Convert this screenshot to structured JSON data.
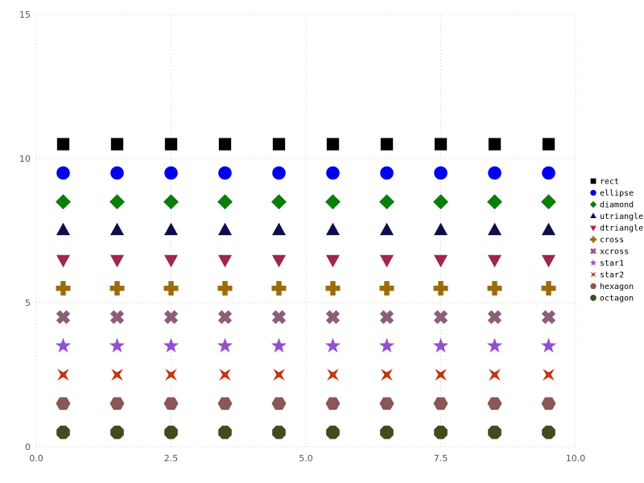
{
  "chart_data": {
    "type": "scatter",
    "title": "",
    "xlabel": "",
    "ylabel": "",
    "xlim": [
      0,
      10
    ],
    "ylim": [
      0,
      15
    ],
    "grid": {
      "style": "dotted",
      "color": "#cccccc"
    },
    "legend": {
      "position": "right"
    },
    "x": [
      0.5,
      1.5,
      2.5,
      3.5,
      4.5,
      5.5,
      6.5,
      7.5,
      8.5,
      9.5
    ],
    "xticks": [
      {
        "v": 0.0,
        "label": "0.0"
      },
      {
        "v": 2.5,
        "label": "2.5"
      },
      {
        "v": 5.0,
        "label": "5.0"
      },
      {
        "v": 7.5,
        "label": "7.5"
      },
      {
        "v": 10.0,
        "label": "10.0"
      }
    ],
    "yticks": [
      {
        "v": 0,
        "label": "0"
      },
      {
        "v": 5,
        "label": "5"
      },
      {
        "v": 10,
        "label": "10"
      },
      {
        "v": 15,
        "label": "15"
      }
    ],
    "series": [
      {
        "name": "rect",
        "marker": "rect",
        "color": "#000000",
        "y": 10.5
      },
      {
        "name": "ellipse",
        "marker": "ellipse",
        "color": "#0000ee",
        "y": 9.5
      },
      {
        "name": "diamond",
        "marker": "diamond",
        "color": "#0a7d0a",
        "y": 8.5
      },
      {
        "name": "utriangle",
        "marker": "utriangle",
        "color": "#0e0e4e",
        "y": 7.5
      },
      {
        "name": "dtriangle",
        "marker": "dtriangle",
        "color": "#a0254f",
        "y": 6.5
      },
      {
        "name": "cross",
        "marker": "cross",
        "color": "#9c6b0c",
        "y": 5.5
      },
      {
        "name": "xcross",
        "marker": "xcross",
        "color": "#8c5e7b",
        "y": 4.5
      },
      {
        "name": "star1",
        "marker": "star1",
        "color": "#9150d2",
        "y": 3.5
      },
      {
        "name": "star2",
        "marker": "star2",
        "color": "#c23510",
        "y": 2.5
      },
      {
        "name": "hexagon",
        "marker": "hexagon",
        "color": "#8a5656",
        "y": 1.5
      },
      {
        "name": "octagon",
        "marker": "octagon",
        "color": "#3e4d1c",
        "y": 0.5
      }
    ]
  }
}
